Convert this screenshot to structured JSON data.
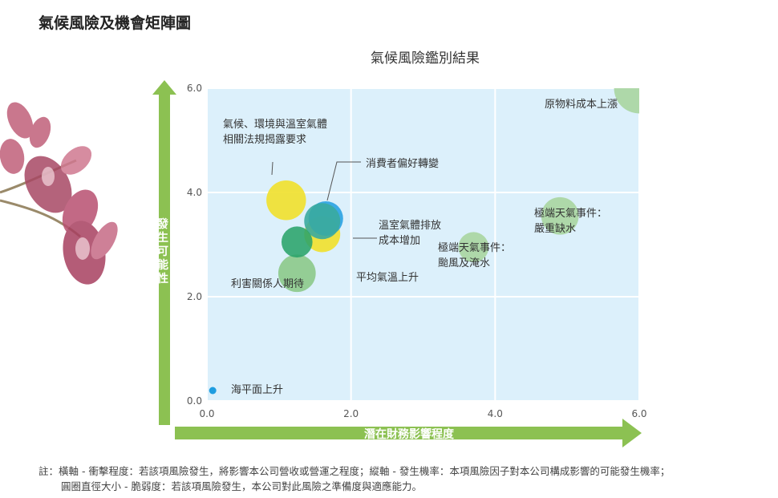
{
  "page_title": "氣候風險及機會矩陣圖",
  "note": {
    "line1": "註：橫軸 - 衝擊程度：若該項風險發生，將影響本公司營收或營運之程度；縱軸 - 發生機率：本項風險因子對本公司構成影響的可能發生機率；",
    "line2": "圓圈直徑大小 - 脆弱度：若該項風險發生，本公司對此風險之準備度與適應能力。"
  },
  "colors": {
    "plot_bg": "#dcf0fb",
    "arrow_green": "#8cc152",
    "yellow": "#f0e130",
    "blue": "#1e9de0",
    "teal": "#3aaa9e",
    "dark_green": "#2aa36a",
    "light_green": "#a8d5a0",
    "mid_green": "#8cc98a"
  },
  "chart_data": {
    "type": "scatter",
    "title": "氣候風險鑑別結果",
    "xlabel": "潛在財務影響程度",
    "ylabel": "發生可能性",
    "xlim": [
      0,
      6
    ],
    "ylim": [
      0,
      6
    ],
    "x_ticks": [
      "0.0",
      "2.0",
      "4.0",
      "6.0"
    ],
    "y_ticks": [
      "0.0",
      "2.0",
      "4.0",
      "6.0"
    ],
    "grid": true,
    "points": [
      {
        "label": "原物料成本上漲",
        "x": 6.0,
        "y": 6.0,
        "size": 0.7,
        "color": "#a8d5a0",
        "opacity": 0.9
      },
      {
        "label": "極端天氣事件：\n嚴重缺水",
        "x": 4.9,
        "y": 3.55,
        "size": 0.52,
        "color": "#a8d5a0",
        "opacity": 0.9
      },
      {
        "label": "極端天氣事件：\n颱風及淹水",
        "x": 3.7,
        "y": 2.95,
        "size": 0.42,
        "color": "#a8d5a0",
        "opacity": 0.9
      },
      {
        "label": "氣候、環境與溫室氣體\n相關法規揭露要求",
        "x": 1.1,
        "y": 3.85,
        "size": 0.55,
        "color": "#f0e130",
        "opacity": 0.92
      },
      {
        "label": "平均氣溫上升",
        "x": 1.6,
        "y": 3.2,
        "size": 0.5,
        "color": "#f0e130",
        "opacity": 0.92
      },
      {
        "label": "消費者偏好轉變",
        "x": 1.65,
        "y": 3.5,
        "size": 0.48,
        "color": "#1e9de0",
        "opacity": 0.85
      },
      {
        "label": "溫室氣體排放\n成本增加",
        "x": 1.6,
        "y": 3.45,
        "size": 0.5,
        "color": "#3aaa9e",
        "opacity": 0.9
      },
      {
        "label": "利害關係人期待",
        "x": 1.25,
        "y": 2.45,
        "size": 0.52,
        "color": "#8cc98a",
        "opacity": 0.9
      },
      {
        "label": "",
        "x": 1.25,
        "y": 3.05,
        "size": 0.43,
        "color": "#2aa36a",
        "opacity": 0.88
      },
      {
        "label": "海平面上升",
        "x": 0.08,
        "y": 0.2,
        "size": 0.1,
        "color": "#1e9de0",
        "opacity": 1
      }
    ]
  }
}
